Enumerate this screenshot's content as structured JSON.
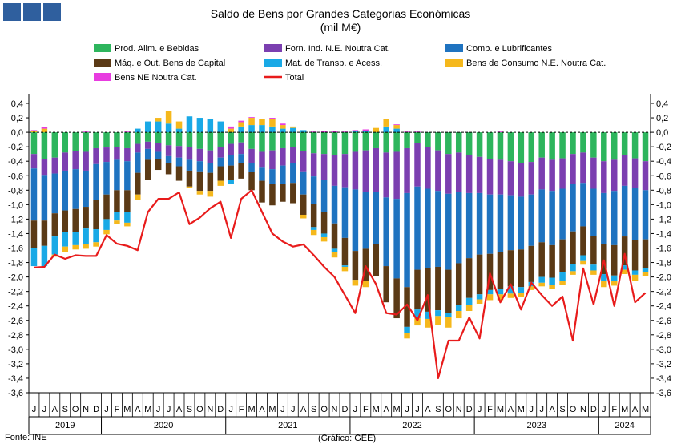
{
  "chart_data": {
    "type": "stacked-bar+line",
    "title": "Saldo de Bens por Grandes Categorias Económicas",
    "subtitle": "(mil M€)",
    "ylim": [
      -3.6,
      0.4
    ],
    "yticks": [
      "0,4",
      "0,2",
      "0,0",
      "-0,2",
      "-0,4",
      "-0,6",
      "-0,8",
      "-1,0",
      "-1,2",
      "-1,4",
      "-1,6",
      "-1,8",
      "-2,0",
      "-2,2",
      "-2,4",
      "-2,6",
      "-2,8",
      "-3,0",
      "-3,2",
      "-3,4",
      "-3,6"
    ],
    "month_labels": [
      "J",
      "J",
      "A",
      "S",
      "O",
      "N",
      "D",
      "J",
      "F",
      "M",
      "A",
      "M",
      "J",
      "J",
      "A",
      "S",
      "O",
      "N",
      "D",
      "J",
      "F",
      "M",
      "A",
      "M",
      "J",
      "J",
      "A",
      "S",
      "O",
      "N",
      "D",
      "J",
      "F",
      "M",
      "A",
      "M",
      "J",
      "J",
      "A",
      "S",
      "O",
      "N",
      "D",
      "J",
      "F",
      "M",
      "A",
      "M",
      "J",
      "J",
      "A",
      "S",
      "O",
      "N",
      "D",
      "J",
      "F",
      "M",
      "A",
      "M"
    ],
    "years": [
      {
        "label": "2019",
        "start": 0,
        "count": 7
      },
      {
        "label": "2020",
        "start": 7,
        "count": 12
      },
      {
        "label": "2021",
        "start": 19,
        "count": 12
      },
      {
        "label": "2022",
        "start": 31,
        "count": 12
      },
      {
        "label": "2023",
        "start": 43,
        "count": 12
      },
      {
        "label": "2024",
        "start": 55,
        "count": 5
      }
    ],
    "series": [
      {
        "name": "Prod. Alim. e Bebidas",
        "color": "#2db55d",
        "values": [
          -0.3,
          -0.37,
          -0.35,
          -0.28,
          -0.26,
          -0.27,
          -0.22,
          -0.21,
          -0.2,
          -0.22,
          -0.16,
          -0.13,
          -0.15,
          -0.18,
          -0.19,
          -0.2,
          -0.23,
          -0.25,
          -0.2,
          -0.16,
          -0.14,
          -0.23,
          -0.27,
          -0.25,
          -0.22,
          -0.2,
          -0.26,
          -0.29,
          -0.3,
          -0.32,
          -0.3,
          -0.27,
          -0.25,
          -0.22,
          -0.28,
          -0.27,
          -0.22,
          -0.15,
          -0.2,
          -0.25,
          -0.3,
          -0.28,
          -0.32,
          -0.34,
          -0.37,
          -0.38,
          -0.4,
          -0.43,
          -0.41,
          -0.35,
          -0.38,
          -0.36,
          -0.3,
          -0.28,
          -0.35,
          -0.4,
          -0.38,
          -0.32,
          -0.36,
          -0.4
        ]
      },
      {
        "name": "Forn. Ind. N.E. Noutra Cat.",
        "color": "#7b3fb0",
        "values": [
          -0.2,
          -0.22,
          -0.22,
          -0.25,
          -0.25,
          -0.26,
          -0.22,
          -0.2,
          -0.18,
          -0.18,
          -0.12,
          -0.1,
          -0.12,
          -0.15,
          -0.16,
          -0.18,
          -0.17,
          -0.18,
          -0.15,
          -0.15,
          -0.16,
          -0.2,
          -0.22,
          -0.26,
          -0.24,
          -0.22,
          -0.28,
          -0.32,
          -0.36,
          -0.42,
          -0.46,
          -0.52,
          -0.58,
          -0.6,
          -0.62,
          -0.65,
          -0.62,
          -0.6,
          -0.58,
          -0.56,
          -0.55,
          -0.55,
          -0.52,
          -0.5,
          -0.49,
          -0.48,
          -0.47,
          -0.46,
          -0.45,
          -0.44,
          -0.43,
          -0.42,
          -0.41,
          -0.42,
          -0.43,
          -0.44,
          -0.43,
          -0.42,
          -0.41,
          -0.4
        ]
      },
      {
        "name": "Comb. e Lubrificantes",
        "color": "#1f73c0",
        "values": [
          -0.72,
          -0.63,
          -0.55,
          -0.55,
          -0.55,
          -0.5,
          -0.5,
          -0.45,
          -0.42,
          -0.4,
          -0.28,
          -0.15,
          -0.1,
          -0.1,
          -0.12,
          -0.15,
          -0.14,
          -0.13,
          -0.12,
          -0.15,
          -0.12,
          -0.12,
          -0.18,
          -0.2,
          -0.25,
          -0.28,
          -0.32,
          -0.38,
          -0.44,
          -0.52,
          -0.7,
          -0.85,
          -0.78,
          -0.72,
          -0.95,
          -1.1,
          -1.3,
          -1.15,
          -1.1,
          -1.05,
          -1.05,
          -0.98,
          -0.9,
          -0.85,
          -0.82,
          -0.8,
          -0.76,
          -0.73,
          -0.71,
          -0.73,
          -0.75,
          -0.7,
          -0.66,
          -0.6,
          -0.65,
          -0.7,
          -0.75,
          -0.7,
          -0.72,
          -0.68
        ]
      },
      {
        "name": "Máq. e Out. Bens de Capital",
        "color": "#5b3a16",
        "values": [
          -0.38,
          -0.35,
          -0.32,
          -0.3,
          -0.32,
          -0.3,
          -0.4,
          -0.34,
          -0.3,
          -0.3,
          -0.3,
          -0.28,
          -0.15,
          -0.15,
          -0.2,
          -0.22,
          -0.27,
          -0.25,
          -0.2,
          -0.2,
          -0.22,
          -0.25,
          -0.3,
          -0.3,
          -0.25,
          -0.28,
          -0.28,
          -0.32,
          -0.3,
          -0.35,
          -0.38,
          -0.4,
          -0.45,
          -0.45,
          -0.5,
          -0.55,
          -0.55,
          -0.55,
          -0.6,
          -0.6,
          -0.6,
          -0.58,
          -0.55,
          -0.55,
          -0.5,
          -0.5,
          -0.5,
          -0.52,
          -0.5,
          -0.48,
          -0.45,
          -0.45,
          -0.45,
          -0.4,
          -0.4,
          -0.42,
          -0.42,
          -0.4,
          -0.42,
          -0.4
        ]
      },
      {
        "name": "Mat. de Transp. e Acess.",
        "color": "#19a9e6",
        "values": [
          -0.25,
          -0.28,
          -0.25,
          -0.2,
          -0.18,
          -0.22,
          -0.18,
          -0.15,
          -0.12,
          -0.15,
          0.05,
          0.15,
          0.15,
          0.12,
          0.05,
          0.22,
          0.2,
          0.18,
          0.15,
          -0.05,
          0.08,
          0.1,
          0.1,
          0.08,
          0.05,
          0.06,
          0.03,
          -0.04,
          -0.05,
          -0.04,
          -0.02,
          0.02,
          0.02,
          0.0,
          0.08,
          0.05,
          -0.08,
          -0.12,
          -0.1,
          -0.08,
          -0.05,
          -0.08,
          -0.1,
          -0.07,
          -0.06,
          -0.08,
          -0.1,
          -0.08,
          -0.06,
          -0.08,
          -0.1,
          -0.12,
          -0.1,
          -0.08,
          -0.08,
          -0.1,
          -0.08,
          -0.06,
          -0.06,
          -0.05
        ]
      },
      {
        "name": "Bens de Consumo N.E. Noutra Cat.",
        "color": "#f5b81c",
        "values": [
          0.02,
          0.05,
          -0.03,
          -0.08,
          -0.06,
          -0.06,
          -0.06,
          -0.06,
          -0.05,
          -0.05,
          -0.08,
          0.0,
          0.05,
          0.18,
          0.1,
          -0.02,
          -0.05,
          -0.08,
          -0.07,
          0.05,
          0.06,
          0.1,
          0.08,
          0.1,
          0.05,
          0.02,
          -0.05,
          -0.07,
          -0.06,
          -0.08,
          -0.06,
          -0.08,
          -0.08,
          0.06,
          0.1,
          0.05,
          -0.08,
          -0.1,
          -0.12,
          -0.12,
          -0.15,
          -0.1,
          -0.08,
          -0.06,
          -0.08,
          -0.08,
          -0.06,
          -0.06,
          -0.05,
          -0.05,
          -0.06,
          -0.06,
          -0.05,
          -0.05,
          -0.06,
          -0.08,
          -0.06,
          -0.06,
          -0.08,
          -0.06
        ]
      },
      {
        "name": "Bens NE Noutra Cat.",
        "color": "#e83ce0",
        "values": [
          0.01,
          0.02,
          0.0,
          0.0,
          0.0,
          0.01,
          0.0,
          0.0,
          0.0,
          0.01,
          0.0,
          0.0,
          0.0,
          0.0,
          0.0,
          0.0,
          0.0,
          0.0,
          0.0,
          0.03,
          0.02,
          0.01,
          0.0,
          0.02,
          0.02,
          0.0,
          0.0,
          0.01,
          0.02,
          0.02,
          0.01,
          0.01,
          0.02,
          0.0,
          0.0,
          0.01,
          0.01,
          0.01,
          0.0,
          0.0,
          0.0,
          0.0,
          0.0,
          0.0,
          0.0,
          0.01,
          0.0,
          0.0,
          0.0,
          0.0,
          0.0,
          0.0,
          0.0,
          0.0,
          0.0,
          0.0,
          0.0,
          0.0,
          0.0,
          0.0
        ]
      },
      {
        "name": "Total",
        "color": "#e81b1b",
        "type": "line",
        "values": [
          -1.87,
          -1.86,
          -1.69,
          -1.75,
          -1.7,
          -1.71,
          -1.71,
          -1.42,
          -1.54,
          -1.57,
          -1.63,
          -1.1,
          -0.92,
          -0.92,
          -0.83,
          -1.27,
          -1.18,
          -1.05,
          -0.96,
          -1.46,
          -0.92,
          -0.8,
          -1.1,
          -1.4,
          -1.51,
          -1.58,
          -1.55,
          -1.7,
          -1.86,
          -2.0,
          -2.25,
          -2.5,
          -1.85,
          -2.1,
          -2.5,
          -2.52,
          -2.38,
          -2.6,
          -2.25,
          -3.4,
          -2.88,
          -2.88,
          -2.56,
          -2.85,
          -1.95,
          -2.35,
          -2.1,
          -2.45,
          -2.08,
          -2.25,
          -2.4,
          -2.27,
          -2.88,
          -1.88,
          -2.38,
          -1.77,
          -2.4,
          -1.68,
          -2.35,
          -2.22
        ]
      }
    ],
    "legend": [
      "Prod. Alim. e Bebidas",
      "Forn. Ind. N.E. Noutra Cat.",
      "Comb. e Lubrificantes",
      "Máq. e Out. Bens de Capital",
      "Mat. de Transp. e Acess.",
      "Bens de Consumo N.E. Noutra Cat.",
      "Bens NE Noutra Cat.",
      "Total"
    ]
  },
  "footer": {
    "source": "Fonte: INE",
    "credit": "(Gráfico: GEE)"
  },
  "brand_color": "#2f5f9e"
}
